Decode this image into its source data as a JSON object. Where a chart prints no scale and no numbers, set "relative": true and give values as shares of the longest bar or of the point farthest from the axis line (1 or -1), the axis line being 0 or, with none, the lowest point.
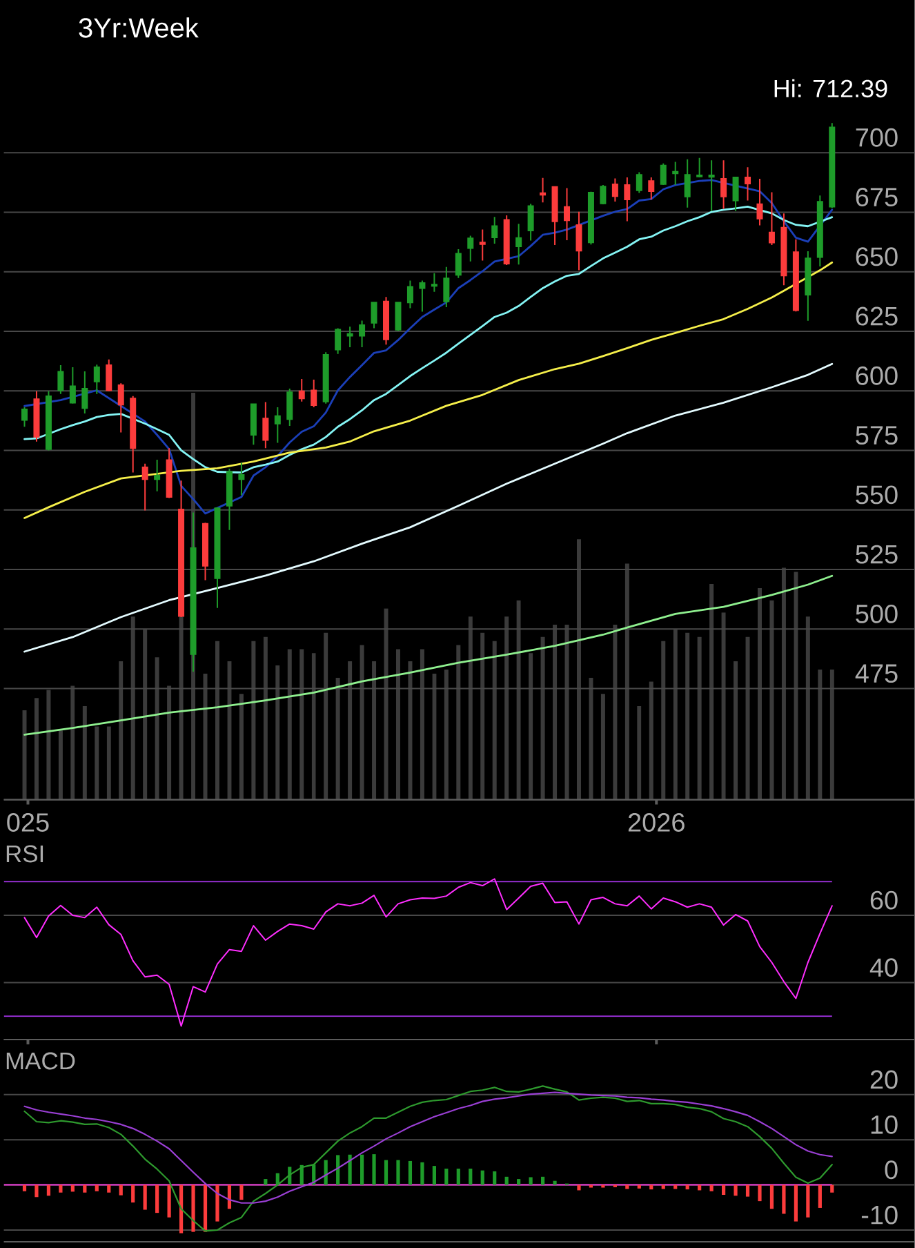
{
  "chart_data": [
    {
      "type": "candlestick",
      "title": "3Yr:Week",
      "annotations": [
        "Hi: 712.39"
      ],
      "x": [
        "2024-12-30",
        "2025-01-06",
        "2025-01-13",
        "2025-01-20",
        "2025-01-27",
        "2025-02-03",
        "2025-02-10",
        "2025-02-17",
        "2025-02-24",
        "2025-03-03",
        "2025-03-10",
        "2025-03-17",
        "2025-03-24",
        "2025-03-31",
        "2025-04-07",
        "2025-04-14",
        "2025-04-21",
        "2025-04-28",
        "2025-05-05",
        "2025-05-12",
        "2025-05-19",
        "2025-05-26",
        "2025-06-02",
        "2025-06-09",
        "2025-06-16",
        "2025-06-23",
        "2025-06-30",
        "2025-07-07",
        "2025-07-14",
        "2025-07-21",
        "2025-07-28",
        "2025-08-04",
        "2025-08-11",
        "2025-08-18",
        "2025-08-25",
        "2025-09-01",
        "2025-09-08",
        "2025-09-15",
        "2025-09-22",
        "2025-09-29",
        "2025-10-06",
        "2025-10-13",
        "2025-10-20",
        "2025-10-27",
        "2025-11-03",
        "2025-11-10",
        "2025-11-17",
        "2025-11-24",
        "2025-12-01",
        "2025-12-08",
        "2025-12-15",
        "2025-12-22",
        "2025-12-29",
        "2026-01-05",
        "2026-01-12",
        "2026-01-19",
        "2026-01-26",
        "2026-02-02",
        "2026-02-09",
        "2026-02-16",
        "2026-02-23",
        "2026-03-02",
        "2026-03-09",
        "2026-03-16",
        "2026-03-23",
        "2026-03-30",
        "2026-04-06",
        "2026-04-13"
      ],
      "ohlc": [
        [
          587.7,
          593.1,
          584.9,
          592.2
        ],
        [
          596.5,
          599.8,
          578.7,
          580.6
        ],
        [
          575.5,
          599.8,
          575.0,
          597.7
        ],
        [
          600.2,
          610.8,
          598.7,
          608.0
        ],
        [
          595.0,
          609.9,
          594.6,
          601.9
        ],
        [
          592.7,
          608.2,
          590.5,
          600.9
        ],
        [
          603.9,
          611.0,
          598.7,
          609.9
        ],
        [
          610.8,
          613.2,
          599.8,
          600.2
        ],
        [
          602.4,
          603.2,
          582.5,
          594.2
        ],
        [
          596.8,
          597.8,
          565.7,
          575.9
        ],
        [
          567.9,
          569.4,
          549.8,
          562.9
        ],
        [
          562.9,
          571.1,
          557.8,
          564.4
        ],
        [
          570.9,
          575.9,
          555.0,
          555.4
        ],
        [
          550.2,
          562.3,
          505.0,
          505.4
        ],
        [
          489.4,
          548.9,
          482.1,
          534.0
        ],
        [
          544.2,
          544.6,
          520.5,
          526.5
        ],
        [
          521.3,
          551.1,
          508.8,
          550.7
        ],
        [
          551.7,
          567.3,
          541.6,
          566.0
        ],
        [
          562.9,
          569.8,
          556.2,
          564.7
        ],
        [
          581.5,
          594.4,
          577.4,
          594.4
        ],
        [
          588.4,
          595.3,
          575.9,
          579.3
        ],
        [
          586.2,
          593.1,
          578.2,
          589.4
        ],
        [
          588.1,
          600.9,
          585.3,
          599.4
        ],
        [
          599.8,
          605.0,
          595.5,
          596.8
        ],
        [
          600.2,
          604.7,
          593.1,
          594.0
        ],
        [
          595.5,
          616.2,
          594.6,
          615.1
        ],
        [
          617.3,
          626.3,
          615.5,
          625.7
        ],
        [
          623.1,
          626.9,
          618.3,
          623.9
        ],
        [
          623.1,
          629.5,
          618.3,
          627.6
        ],
        [
          628.5,
          637.1,
          626.3,
          637.1
        ],
        [
          637.5,
          639.4,
          619.4,
          621.6
        ],
        [
          625.6,
          637.1,
          625.2,
          637.1
        ],
        [
          637.1,
          646.3,
          634.7,
          643.7
        ],
        [
          643.1,
          646.3,
          633.2,
          645.3
        ],
        [
          644.0,
          649.4,
          641.6,
          644.6
        ],
        [
          637.5,
          652.0,
          635.1,
          647.2
        ],
        [
          648.7,
          659.5,
          647.4,
          657.6
        ],
        [
          659.9,
          665.1,
          654.3,
          664.0
        ],
        [
          662.3,
          667.7,
          654.7,
          661.6
        ],
        [
          664.4,
          673.0,
          661.8,
          669.2
        ],
        [
          671.8,
          673.7,
          652.8,
          653.4
        ],
        [
          660.6,
          670.1,
          653.0,
          664.2
        ],
        [
          667.3,
          678.5,
          663.1,
          677.6
        ],
        [
          683.0,
          689.4,
          679.1,
          682.3
        ],
        [
          685.6,
          685.6,
          661.2,
          671.1
        ],
        [
          677.2,
          685.1,
          663.2,
          671.6
        ],
        [
          669.6,
          675.2,
          650.6,
          658.8
        ],
        [
          662.3,
          683.6,
          661.4,
          683.2
        ],
        [
          678.7,
          686.4,
          678.3,
          685.8
        ],
        [
          686.7,
          689.2,
          679.5,
          681.7
        ],
        [
          686.4,
          689.6,
          671.2,
          680.3
        ],
        [
          684.2,
          691.8,
          683.1,
          690.7
        ],
        [
          688.1,
          689.6,
          680.3,
          683.8
        ],
        [
          686.8,
          695.5,
          686.4,
          694.6
        ],
        [
          691.3,
          696.1,
          686.4,
          692.0
        ],
        [
          681.6,
          697.2,
          676.9,
          690.7
        ],
        [
          690.0,
          697.8,
          689.6,
          690.5
        ],
        [
          689.8,
          696.8,
          675.5,
          690.5
        ],
        [
          689.0,
          696.8,
          676.4,
          681.6
        ],
        [
          679.9,
          689.6,
          675.5,
          689.6
        ],
        [
          689.6,
          693.9,
          679.9,
          687.0
        ],
        [
          678.4,
          689.0,
          669.5,
          672.3
        ],
        [
          666.5,
          683.4,
          661.2,
          662.2
        ],
        [
          668.5,
          674.5,
          644.3,
          648.4
        ],
        [
          658.2,
          663.6,
          633.3,
          633.8
        ],
        [
          640.3,
          658.6,
          629.4,
          655.6
        ],
        [
          656.1,
          682.0,
          652.2,
          679.4
        ],
        [
          677.3,
          712.4,
          676.7,
          710.6
        ]
      ],
      "colors": [
        "#1e9c2a",
        "#fc3c3c",
        "#1e9c2a",
        "#1e9c2a",
        "#1e9c2a",
        "#1e9c2a",
        "#1e9c2a",
        "#fc3c3c",
        "#fc3c3c",
        "#fc3c3c",
        "#fc3c3c",
        "#1e9c2a",
        "#fc3c3c",
        "#fc3c3c",
        "#1e9c2a",
        "#fc3c3c",
        "#1e9c2a",
        "#1e9c2a",
        "#1e9c2a",
        "#1e9c2a",
        "#fc3c3c",
        "#1e9c2a",
        "#1e9c2a",
        "#fc3c3c",
        "#fc3c3c",
        "#1e9c2a",
        "#1e9c2a",
        "#1e9c2a",
        "#1e9c2a",
        "#1e9c2a",
        "#fc3c3c",
        "#1e9c2a",
        "#1e9c2a",
        "#1e9c2a",
        "#1e9c2a",
        "#1e9c2a",
        "#1e9c2a",
        "#1e9c2a",
        "#fc3c3c",
        "#1e9c2a",
        "#fc3c3c",
        "#1e9c2a",
        "#1e9c2a",
        "#fc3c3c",
        "#fc3c3c",
        "#fc3c3c",
        "#fc3c3c",
        "#1e9c2a",
        "#1e9c2a",
        "#fc3c3c",
        "#fc3c3c",
        "#1e9c2a",
        "#fc3c3c",
        "#1e9c2a",
        "#1e9c2a",
        "#1e9c2a",
        "#1e9c2a",
        "#1e9c2a",
        "#fc3c3c",
        "#1e9c2a",
        "#fc3c3c",
        "#fc3c3c",
        "#fc3c3c",
        "#fc3c3c",
        "#fc3c3c",
        "#1e9c2a",
        "#1e9c2a",
        "#1e9c2a"
      ],
      "series": [
        {
          "type": "line",
          "color": "#1b3fb8",
          "values": [
            593.6,
            null,
            null,
            596.1,
            null,
            null,
            600.2,
            null,
            null,
            null,
            587.1,
            581.5,
            575.5,
            560.1,
            554.5,
            548.5,
            null,
            null,
            555.4,
            564.4,
            567.9,
            572.6,
            578.3,
            582.8,
            585.1,
            590.9,
            600.2,
            605.8,
            610.8,
            615.9,
            617.0,
            621.3,
            626.3,
            631.0,
            634.1,
            637.1,
            643.1,
            646.5,
            650.2,
            654.3,
            null,
            656.5,
            660.8,
            665.5,
            666.4,
            667.7,
            null,
            null,
            673.5,
            675.2,
            676.3,
            679.9,
            680.5,
            684.6,
            686.4,
            null,
            688.1,
            688.5,
            null,
            null,
            null,
            683.8,
            678.8,
            671.2,
            664.3,
            662.6,
            null,
            676.0
          ]
        },
        {
          "type": "line",
          "color": "#84f4f4",
          "values": [
            579.7,
            580.0,
            null,
            583.9,
            585.6,
            587.1,
            589.0,
            589.9,
            590.3,
            null,
            586.2,
            583.9,
            581.5,
            575.0,
            571.3,
            567.9,
            566.0,
            null,
            565.7,
            567.9,
            569.0,
            570.3,
            573.1,
            575.5,
            577.4,
            580.6,
            584.9,
            588.1,
            591.8,
            596.1,
            598.7,
            602.4,
            606.2,
            609.5,
            612.7,
            616.0,
            619.8,
            623.5,
            627.2,
            631.0,
            632.8,
            635.6,
            639.4,
            643.1,
            645.9,
            648.3,
            649.1,
            652.4,
            655.6,
            658.0,
            660.5,
            663.6,
            664.7,
            667.3,
            669.1,
            671.2,
            672.9,
            675.1,
            676.0,
            676.6,
            677.3,
            null,
            674.5,
            671.7,
            669.7,
            669.1,
            null,
            672.9
          ]
        },
        {
          "type": "line",
          "color": "#f5ef4a",
          "x": [
            "2024-12-30",
            "2025-01-13",
            "2025-02-03",
            "2025-02-24",
            "2025-03-10",
            "2025-03-31",
            "2025-04-21",
            "2025-05-12",
            "2025-06-02",
            "2025-06-23",
            "2025-07-07",
            "2025-07-21",
            "2025-08-11",
            "2025-09-01",
            "2025-09-22",
            "2025-10-13",
            "2025-11-03",
            "2025-11-17",
            "2025-12-01",
            "2025-12-15",
            "2025-12-29",
            "2026-01-12",
            "2026-01-26",
            "2026-02-09",
            "2026-02-23",
            "2026-03-09",
            "2026-03-16",
            "2026-03-23",
            "2026-03-30",
            "2026-04-06",
            "2026-04-13"
          ],
          "values": [
            546.6,
            551.1,
            557.6,
            563.2,
            null,
            566.4,
            567.5,
            570.3,
            574.1,
            576.2,
            578.7,
            583.0,
            587.5,
            593.7,
            598.3,
            604.5,
            609.1,
            611.4,
            614.6,
            617.9,
            621.4,
            624.3,
            627.3,
            630.1,
            634.4,
            639.2,
            642.0,
            null,
            null,
            650.6,
            653.9
          ]
        },
        {
          "type": "line",
          "color": "#e4fbff",
          "x": [
            "2024-12-30",
            "2025-01-27",
            "2025-02-24",
            "2025-03-24",
            "2025-04-21",
            "2025-05-19",
            "2025-06-16",
            "2025-07-14",
            "2025-08-11",
            "2025-09-08",
            "2025-10-06",
            "2025-11-03",
            "2025-12-01",
            "2025-12-15",
            "2026-01-12",
            "2026-02-09",
            "2026-03-09",
            "2026-03-30",
            "2026-04-13"
          ],
          "values": [
            490.5,
            496.6,
            505.0,
            512.1,
            517.2,
            522.4,
            528.4,
            535.8,
            542.7,
            551.7,
            561.0,
            569.4,
            577.8,
            582.2,
            589.6,
            595.0,
            601.5,
            606.7,
            611.3
          ]
        },
        {
          "type": "line",
          "color": "#8ff08f",
          "x": [
            "2024-12-30",
            "2025-01-27",
            "2025-02-24",
            "2025-03-24",
            "2025-04-21",
            "2025-05-19",
            "2025-06-16",
            "2025-07-14",
            "2025-08-11",
            "2025-09-08",
            "2025-10-06",
            "2025-11-03",
            "2025-12-01",
            "2025-12-15",
            "2026-01-12",
            "2026-02-09",
            "2026-03-09",
            "2026-03-30",
            "2026-04-13"
          ],
          "values": [
            455.6,
            458.4,
            461.6,
            464.9,
            467.1,
            470.0,
            473.3,
            478.0,
            481.7,
            485.8,
            489.2,
            492.9,
            497.6,
            500.6,
            506.3,
            509.3,
            514.3,
            518.6,
            522.3
          ]
        }
      ],
      "xlim": [
        "2024-12-18",
        "2026-05-31"
      ],
      "xticks": [
        {
          "value": "2025-01-01",
          "label": "025"
        },
        {
          "value": "2026-01-01",
          "label": "2026"
        }
      ],
      "ylim": [
        428.3,
        764.1
      ],
      "yticks": [
        475,
        500,
        525,
        550,
        575,
        600,
        625,
        650,
        675,
        700
      ],
      "grid": "y"
    },
    {
      "type": "bar",
      "relative": true,
      "x": [
        "2024-12-30",
        "2025-01-06",
        "2025-01-13",
        "2025-01-20",
        "2025-01-27",
        "2025-02-03",
        "2025-02-10",
        "2025-02-17",
        "2025-02-24",
        "2025-03-03",
        "2025-03-10",
        "2025-03-17",
        "2025-03-24",
        "2025-03-31",
        "2025-04-07",
        "2025-04-14",
        "2025-04-21",
        "2025-04-28",
        "2025-05-05",
        "2025-05-12",
        "2025-05-19",
        "2025-05-26",
        "2025-06-02",
        "2025-06-09",
        "2025-06-16",
        "2025-06-23",
        "2025-06-30",
        "2025-07-07",
        "2025-07-14",
        "2025-07-21",
        "2025-07-28",
        "2025-08-04",
        "2025-08-11",
        "2025-08-18",
        "2025-08-25",
        "2025-09-01",
        "2025-09-08",
        "2025-09-15",
        "2025-09-22",
        "2025-09-29",
        "2025-10-06",
        "2025-10-13",
        "2025-10-20",
        "2025-10-27",
        "2025-11-03",
        "2025-11-10",
        "2025-11-17",
        "2025-11-24",
        "2025-12-01",
        "2025-12-08",
        "2025-12-15",
        "2025-12-22",
        "2025-12-29",
        "2026-01-05",
        "2026-01-12",
        "2026-01-19",
        "2026-01-26",
        "2026-02-02",
        "2026-02-09",
        "2026-02-16",
        "2026-02-23",
        "2026-03-02",
        "2026-03-09",
        "2026-03-16",
        "2026-03-23",
        "2026-03-30",
        "2026-04-06",
        "2026-04-13"
      ],
      "values": [
        0.22,
        0.25,
        0.27,
        0.17,
        0.28,
        0.23,
        0.18,
        0.18,
        0.34,
        0.45,
        0.42,
        0.35,
        0.28,
        0.45,
        1,
        0.31,
        0.39,
        0.34,
        0.26,
        0.39,
        0.4,
        0.33,
        0.37,
        0.37,
        0.36,
        0.41,
        0.3,
        0.34,
        0.38,
        0.34,
        0.47,
        0.37,
        0.34,
        0.37,
        0.31,
        0.32,
        0.38,
        0.45,
        0.41,
        0.39,
        0.45,
        0.49,
        0.36,
        0.4,
        0.43,
        0.43,
        0.64,
        0.3,
        0.26,
        0.43,
        0.58,
        0.23,
        0.29,
        0.39,
        0.42,
        0.41,
        0.4,
        0.53,
        0.46,
        0.34,
        0.4,
        0.52,
        0.49,
        0.57,
        0.56,
        0.45,
        0.32,
        0.32
      ],
      "color": "#3b3b3b",
      "xlim": [
        "2024-12-18",
        "2026-05-31"
      ],
      "tick_labels": false
    },
    {
      "type": "line",
      "title": "RSI",
      "x": [
        "2024-12-30",
        "2025-01-06",
        "2025-01-13",
        "2025-01-20",
        "2025-01-27",
        "2025-02-03",
        "2025-02-10",
        "2025-02-17",
        "2025-02-24",
        "2025-03-03",
        "2025-03-10",
        "2025-03-17",
        "2025-03-24",
        "2025-03-31",
        "2025-04-07",
        "2025-04-14",
        "2025-04-21",
        "2025-04-28",
        "2025-05-05",
        "2025-05-12",
        "2025-05-19",
        "2025-05-26",
        "2025-06-02",
        "2025-06-09",
        "2025-06-16",
        "2025-06-23",
        "2025-06-30",
        "2025-07-07",
        "2025-07-14",
        "2025-07-21",
        "2025-07-28",
        "2025-08-04",
        "2025-08-11",
        "2025-08-18",
        "2025-08-25",
        "2025-09-01",
        "2025-09-08",
        "2025-09-15",
        "2025-09-22",
        "2025-09-29",
        "2025-10-06",
        "2025-10-13",
        "2025-10-20",
        "2025-10-27",
        "2025-11-03",
        "2025-11-10",
        "2025-11-17",
        "2025-11-24",
        "2025-12-01",
        "2025-12-08",
        "2025-12-15",
        "2025-12-22",
        "2025-12-29",
        "2026-01-05",
        "2026-01-12",
        "2026-01-19",
        "2026-01-26",
        "2026-02-02",
        "2026-02-09",
        "2026-02-16",
        "2026-02-23",
        "2026-03-02",
        "2026-03-09",
        "2026-03-16",
        "2026-03-23",
        "2026-03-30",
        "2026-04-06",
        "2026-04-13"
      ],
      "values": [
        59.3,
        53.4,
        59.8,
        62.9,
        60.0,
        59.3,
        62.4,
        57.2,
        54.3,
        46.5,
        41.7,
        42.2,
        39.5,
        27.1,
        38.8,
        37.2,
        45.5,
        49.8,
        49.3,
        56.9,
        52.6,
        55.2,
        57.4,
        56.9,
        55.9,
        61.0,
        63.4,
        62.8,
        63.6,
        65.9,
        59.5,
        63.4,
        64.6,
        65.1,
        65.0,
        65.7,
        68.3,
        69.7,
        68.8,
        70.8,
        61.7,
        65.1,
        68.6,
        69.5,
        63.8,
        64.0,
        57.4,
        64.6,
        65.3,
        63.4,
        62.8,
        65.7,
        61.9,
        65.1,
        64.0,
        62.4,
        63.4,
        62.4,
        57.1,
        60.2,
        58.3,
        50.7,
        46.0,
        40.3,
        35.3,
        46.0,
        54.6,
        62.8
      ],
      "color": "#ff2eff",
      "xlim": [
        "2024-12-18",
        "2026-05-31"
      ],
      "xticks": [
        {
          "value": "2025-01-01",
          "label": null
        },
        {
          "value": "2026-01-01",
          "label": null
        }
      ],
      "ylim": [
        23.1,
        94.3
      ],
      "yticks": [
        40,
        60
      ],
      "grid": "y",
      "ref_lines": [
        {
          "axis": "y",
          "value": 70,
          "color": "#9a30d8"
        },
        {
          "axis": "y",
          "value": 30,
          "color": "#9a30d8"
        }
      ],
      "tick_labels": "y"
    },
    {
      "type": "bar",
      "title": "MACD",
      "x": [
        "2024-12-30",
        "2025-01-06",
        "2025-01-13",
        "2025-01-20",
        "2025-01-27",
        "2025-02-03",
        "2025-02-10",
        "2025-02-17",
        "2025-02-24",
        "2025-03-03",
        "2025-03-10",
        "2025-03-17",
        "2025-03-24",
        "2025-03-31",
        "2025-04-07",
        "2025-04-14",
        "2025-04-21",
        "2025-04-28",
        "2025-05-05",
        "2025-05-12",
        "2025-05-19",
        "2025-05-26",
        "2025-06-02",
        "2025-06-09",
        "2025-06-16",
        "2025-06-23",
        "2025-06-30",
        "2025-07-07",
        "2025-07-14",
        "2025-07-21",
        "2025-07-28",
        "2025-08-04",
        "2025-08-11",
        "2025-08-18",
        "2025-08-25",
        "2025-09-01",
        "2025-09-08",
        "2025-09-15",
        "2025-09-22",
        "2025-09-29",
        "2025-10-06",
        "2025-10-13",
        "2025-10-20",
        "2025-10-27",
        "2025-11-03",
        "2025-11-10",
        "2025-11-17",
        "2025-11-24",
        "2025-12-01",
        "2025-12-08",
        "2025-12-15",
        "2025-12-22",
        "2025-12-29",
        "2026-01-05",
        "2026-01-12",
        "2026-01-19",
        "2026-01-26",
        "2026-02-02",
        "2026-02-09",
        "2026-02-16",
        "2026-02-23",
        "2026-03-02",
        "2026-03-09",
        "2026-03-16",
        "2026-03-23",
        "2026-03-30",
        "2026-04-06",
        "2026-04-13"
      ],
      "series": [
        {
          "type": "bar",
          "colors": [
            "#fc3c3c",
            "#fc3c3c",
            "#fc3c3c",
            "#fc3c3c",
            "#fc3c3c",
            "#fc3c3c",
            "#fc3c3c",
            "#fc3c3c",
            "#fc3c3c",
            "#fc3c3c",
            "#fc3c3c",
            "#fc3c3c",
            "#fc3c3c",
            "#fc3c3c",
            "#fc3c3c",
            "#fc3c3c",
            "#fc3c3c",
            "#fc3c3c",
            "#fc3c3c",
            "#fc3c3c",
            "#1e9c2a",
            "#1e9c2a",
            "#1e9c2a",
            "#1e9c2a",
            "#1e9c2a",
            "#1e9c2a",
            "#1e9c2a",
            "#1e9c2a",
            "#1e9c2a",
            "#1e9c2a",
            "#1e9c2a",
            "#1e9c2a",
            "#1e9c2a",
            "#1e9c2a",
            "#1e9c2a",
            "#1e9c2a",
            "#1e9c2a",
            "#1e9c2a",
            "#1e9c2a",
            "#1e9c2a",
            "#1e9c2a",
            "#1e9c2a",
            "#1e9c2a",
            "#1e9c2a",
            "#1e9c2a",
            "#1e9c2a",
            "#fc3c3c",
            "#fc3c3c",
            "#fc3c3c",
            "#fc3c3c",
            "#fc3c3c",
            "#fc3c3c",
            "#fc3c3c",
            "#fc3c3c",
            "#fc3c3c",
            "#fc3c3c",
            "#fc3c3c",
            "#fc3c3c",
            "#fc3c3c",
            "#fc3c3c",
            "#fc3c3c",
            "#fc3c3c",
            "#fc3c3c",
            "#fc3c3c",
            "#fc3c3c",
            "#fc3c3c",
            "#fc3c3c",
            "#fc3c3c"
          ],
          "values": [
            -1.4,
            -2.7,
            -2.4,
            -1.7,
            -1.5,
            -1.7,
            -1.4,
            -1.7,
            -2.3,
            -3.9,
            -5.5,
            -6.2,
            -7.2,
            -10.7,
            -10.4,
            -10.4,
            -8.1,
            -5.3,
            -3.3,
            null,
            1.3,
            2.6,
            4.0,
            4.4,
            4.5,
            5.5,
            6.6,
            6.7,
            6.7,
            6.8,
            5.5,
            5.5,
            5.3,
            5.0,
            4.2,
            3.6,
            3.6,
            3.6,
            3.2,
            3.0,
            1.8,
            1.3,
            1.7,
            1.8,
            0.9,
            0.3,
            -1.2,
            -0.6,
            -0.6,
            -0.5,
            -0.9,
            -0.8,
            -1.0,
            -0.9,
            -0.9,
            -1.0,
            -1.2,
            -1.4,
            -2.2,
            -2.4,
            -2.6,
            -3.6,
            -5.3,
            -6.4,
            -8.1,
            -7.2,
            -5.1,
            -1.7
          ]
        },
        {
          "type": "line",
          "color": "#2e9a2e",
          "values": [
            16.3,
            14.0,
            13.8,
            14.2,
            13.9,
            13.4,
            13.5,
            12.7,
            11.2,
            8.6,
            5.7,
            3.5,
            0.9,
            -5.3,
            -7.9,
            -10.2,
            -10.0,
            -8.4,
            -7.2,
            -3.6,
            -1.9,
            0.0,
            2.2,
            3.9,
            4.5,
            7.1,
            9.7,
            11.5,
            12.9,
            14.8,
            14.8,
            16.1,
            17.4,
            18.3,
            18.7,
            18.9,
            19.8,
            20.7,
            21.0,
            21.6,
            20.7,
            20.6,
            21.2,
            21.9,
            21.2,
            20.6,
            18.8,
            19.2,
            19.4,
            19.2,
            18.5,
            18.7,
            18.0,
            18.0,
            17.8,
            17.2,
            16.9,
            16.2,
            14.7,
            14.0,
            12.9,
            10.7,
            8.1,
            4.8,
            1.7,
            0.4,
            1.5,
            4.5
          ]
        },
        {
          "type": "line",
          "color": "#9a3fd4",
          "values": [
            17.4,
            16.6,
            16.1,
            15.7,
            15.3,
            14.8,
            14.5,
            14.0,
            13.4,
            12.5,
            11.2,
            9.7,
            8.0,
            5.4,
            2.8,
            0.3,
            -1.9,
            -3.3,
            -4.0,
            -4.0,
            -3.6,
            -2.7,
            -1.4,
            -0.4,
            0.6,
            2.2,
            3.7,
            5.4,
            7.1,
            8.6,
            10.2,
            11.5,
            12.9,
            14.0,
            15.1,
            16.0,
            16.9,
            17.6,
            18.5,
            19.0,
            19.3,
            19.7,
            20.1,
            20.3,
            20.5,
            20.3,
            20.1,
            19.9,
            19.8,
            19.7,
            19.4,
            19.3,
            19.0,
            18.8,
            18.5,
            18.3,
            17.9,
            17.5,
            16.9,
            16.2,
            15.4,
            14.0,
            12.5,
            10.7,
            8.9,
            7.5,
            6.7,
            6.3
          ]
        }
      ],
      "xlim": [
        "2024-12-18",
        "2026-05-31"
      ],
      "ylim": [
        -12.6,
        32.2
      ],
      "yticks": [
        -10,
        0,
        10,
        20
      ],
      "grid": "y",
      "ref_lines": [
        {
          "axis": "y",
          "value": 0,
          "color": "#f53ce0"
        }
      ],
      "tick_labels": "y"
    }
  ]
}
